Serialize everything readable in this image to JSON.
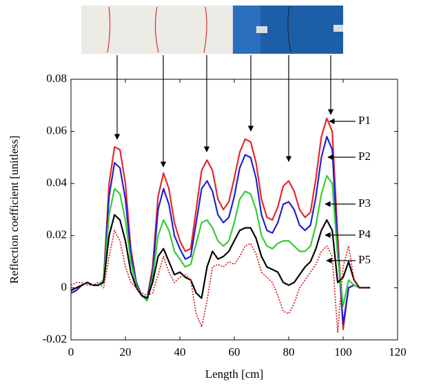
{
  "chart_data": {
    "type": "line",
    "xlabel": "Length [cm]",
    "ylabel": "Reflection coefficient [unitless]",
    "x": [
      0,
      2,
      4,
      6,
      8,
      10,
      12,
      14,
      16,
      18,
      20,
      22,
      24,
      26,
      28,
      30,
      32,
      34,
      36,
      38,
      40,
      42,
      44,
      46,
      48,
      50,
      52,
      54,
      56,
      58,
      60,
      62,
      64,
      66,
      68,
      70,
      72,
      74,
      76,
      78,
      80,
      82,
      84,
      86,
      88,
      90,
      92,
      94,
      96,
      98,
      100,
      102,
      104,
      106,
      108,
      110
    ],
    "xlim": [
      0,
      120
    ],
    "xticks": [
      0,
      20,
      40,
      60,
      80,
      100,
      120
    ],
    "ylim": [
      -0.02,
      0.08
    ],
    "yticks": [
      -0.02,
      0,
      0.02,
      0.04,
      0.06,
      0.08
    ],
    "grid": false,
    "series": [
      {
        "name": "P1",
        "color": "#e3262c",
        "line_style": "solid",
        "values": [
          -0.002,
          -0.001,
          0.001,
          0.002,
          0.001,
          0.001,
          0.003,
          0.04,
          0.054,
          0.053,
          0.04,
          0.015,
          0.002,
          -0.003,
          -0.004,
          0.008,
          0.035,
          0.044,
          0.038,
          0.025,
          0.018,
          0.014,
          0.015,
          0.03,
          0.045,
          0.049,
          0.045,
          0.034,
          0.03,
          0.033,
          0.042,
          0.052,
          0.057,
          0.056,
          0.048,
          0.034,
          0.027,
          0.026,
          0.031,
          0.039,
          0.041,
          0.037,
          0.03,
          0.027,
          0.029,
          0.042,
          0.058,
          0.065,
          0.06,
          0.02,
          -0.016,
          0,
          0.001,
          0,
          0,
          0
        ]
      },
      {
        "name": "P2",
        "color": "#2020d0",
        "line_style": "solid",
        "values": [
          -0.002,
          -0.001,
          0.001,
          0.002,
          0.001,
          0.001,
          0.003,
          0.035,
          0.048,
          0.046,
          0.034,
          0.013,
          0.002,
          -0.003,
          -0.004,
          0.006,
          0.03,
          0.038,
          0.032,
          0.02,
          0.015,
          0.011,
          0.012,
          0.025,
          0.038,
          0.041,
          0.037,
          0.028,
          0.025,
          0.027,
          0.035,
          0.046,
          0.051,
          0.05,
          0.042,
          0.028,
          0.022,
          0.021,
          0.025,
          0.032,
          0.033,
          0.03,
          0.024,
          0.022,
          0.024,
          0.035,
          0.05,
          0.058,
          0.053,
          0.015,
          -0.014,
          0,
          0.001,
          0,
          0,
          0
        ]
      },
      {
        "name": "P3",
        "color": "#33cc33",
        "line_style": "solid",
        "values": [
          -0.001,
          0,
          0.001,
          0.002,
          0.001,
          0.001,
          0.003,
          0.028,
          0.038,
          0.036,
          0.026,
          0.01,
          0.001,
          -0.003,
          -0.005,
          0.004,
          0.02,
          0.026,
          0.022,
          0.014,
          0.011,
          0.008,
          0.009,
          0.017,
          0.025,
          0.026,
          0.023,
          0.018,
          0.016,
          0.018,
          0.025,
          0.034,
          0.037,
          0.036,
          0.03,
          0.02,
          0.016,
          0.015,
          0.017,
          0.018,
          0.018,
          0.016,
          0.014,
          0.014,
          0.016,
          0.024,
          0.036,
          0.043,
          0.04,
          0.012,
          -0.007,
          0.003,
          0.001,
          0,
          0,
          0
        ]
      },
      {
        "name": "P4",
        "color": "#000000",
        "line_style": "solid",
        "values": [
          -0.001,
          0,
          0.001,
          0.002,
          0.001,
          0.001,
          0.002,
          0.02,
          0.028,
          0.026,
          0.018,
          0.006,
          0,
          -0.003,
          -0.004,
          0.002,
          0.012,
          0.015,
          0.01,
          0.005,
          0.006,
          0.004,
          0.003,
          -0.002,
          -0.004,
          0.008,
          0.014,
          0.011,
          0.012,
          0.014,
          0.018,
          0.022,
          0.023,
          0.023,
          0.019,
          0.012,
          0.008,
          0.007,
          0.006,
          0.002,
          0.001,
          0.002,
          0.005,
          0.008,
          0.01,
          0.015,
          0.022,
          0.026,
          0.022,
          0.002,
          0.004,
          0.01,
          0.003,
          0,
          0,
          0
        ]
      },
      {
        "name": "P5",
        "color": "#d42020",
        "line_style": "dotted",
        "values": [
          0.001,
          0.002,
          0.002,
          0.001,
          0.001,
          0.002,
          0,
          0.012,
          0.022,
          0.018,
          0.008,
          0.002,
          0,
          -0.002,
          -0.003,
          -0.002,
          0.005,
          0.012,
          0.006,
          0.002,
          0.004,
          0.005,
          0.003,
          -0.01,
          -0.015,
          -0.005,
          0.008,
          0.009,
          0.008,
          0.01,
          0.009,
          0.012,
          0.016,
          0.017,
          0.013,
          0.006,
          0.004,
          0.002,
          -0.003,
          -0.009,
          -0.01,
          -0.006,
          0,
          0.003,
          0.006,
          0.009,
          0.014,
          0.016,
          0.012,
          -0.017,
          0.008,
          0.016,
          0.003,
          0,
          0,
          0
        ]
      }
    ]
  }
}
